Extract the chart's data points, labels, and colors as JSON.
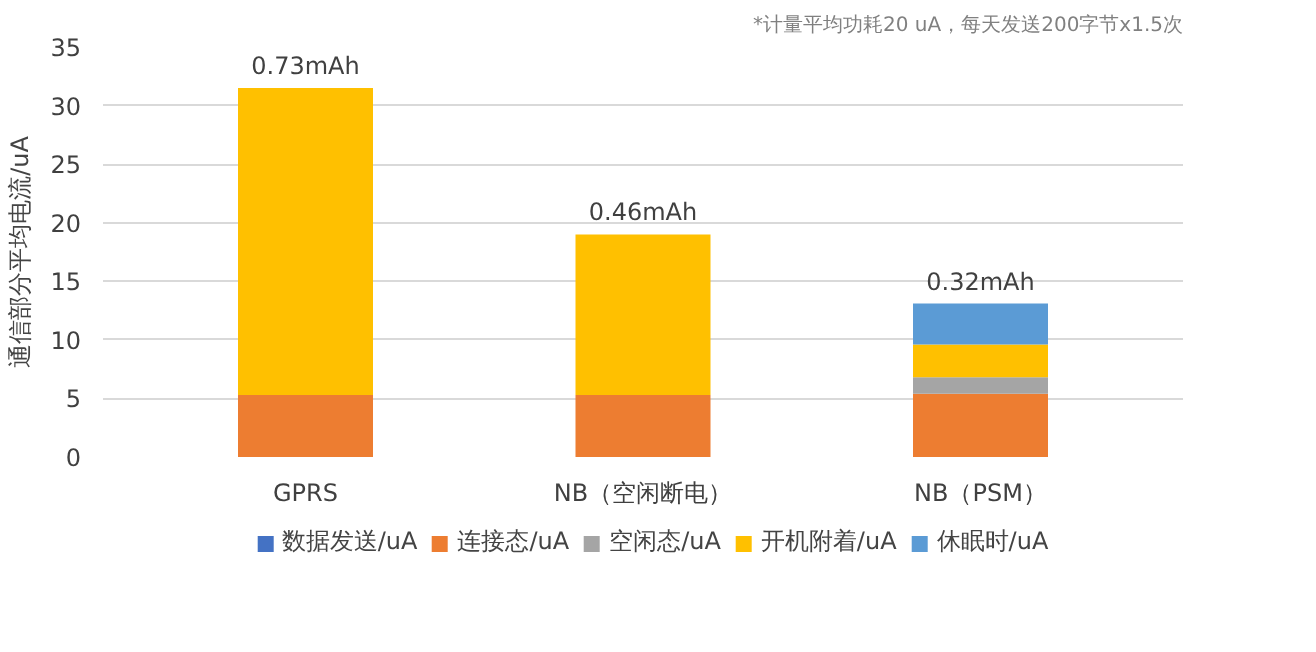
{
  "chart_data": {
    "type": "bar",
    "stacked": true,
    "ylabel": "通信部分平均电流/uA",
    "categories": [
      "GPRS",
      "NB（空闲断电）",
      "NB（PSM）"
    ],
    "series": [
      {
        "name": "数据发送/uA",
        "color": "#4472c4",
        "values": [
          0,
          0,
          0
        ]
      },
      {
        "name": "连接态/uA",
        "color": "#ed7d31",
        "values": [
          5.3,
          5.3,
          5.4
        ]
      },
      {
        "name": "空闲态/uA",
        "color": "#a5a5a5",
        "values": [
          0,
          0,
          1.4
        ]
      },
      {
        "name": "开机附着/uA",
        "color": "#ffc000",
        "values": [
          26.2,
          13.7,
          2.8
        ]
      },
      {
        "name": "休眠时/uA",
        "color": "#5b9bd5",
        "values": [
          0,
          0,
          3.5
        ]
      }
    ],
    "ylim": [
      0,
      35
    ],
    "yticks": [
      0,
      5,
      10,
      15,
      20,
      25,
      30,
      35
    ],
    "grid": "y",
    "legend": "bottom",
    "annotations": [
      "*计量平均功耗20 uA，每天发送200字节x1.5次",
      {
        "text": "0.73mAh",
        "x": "GPRS",
        "y": 31.5
      },
      {
        "text": "0.46mAh",
        "x": "NB（空闲断电）",
        "y": 19.0
      },
      {
        "text": "0.32mAh",
        "x": "NB（PSM）",
        "y": 13.1
      }
    ]
  }
}
